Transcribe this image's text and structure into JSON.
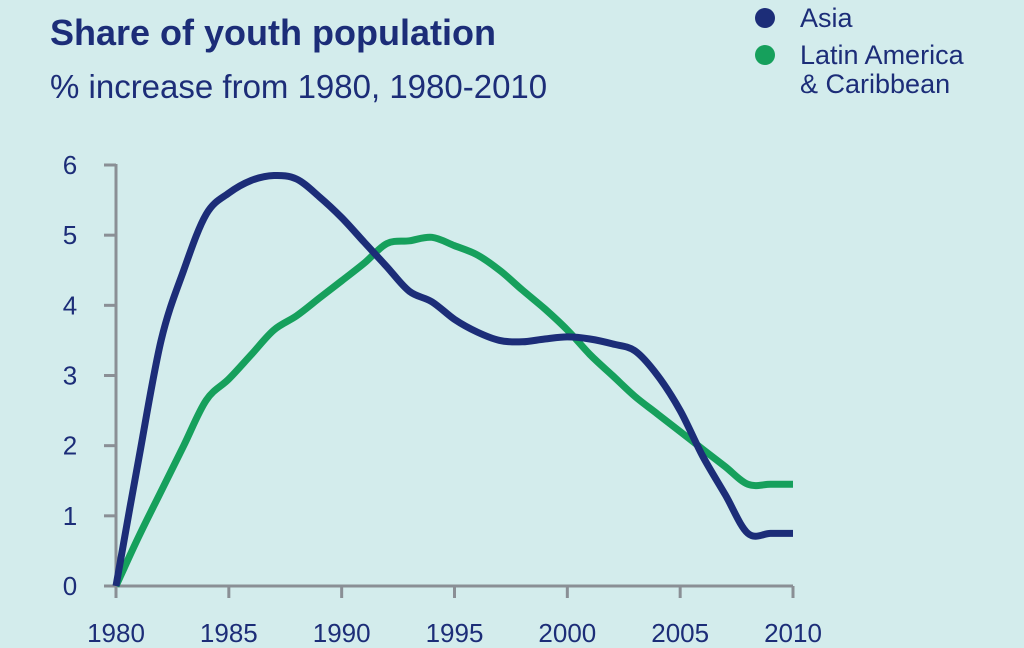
{
  "title": "Share of youth population",
  "subtitle": "% increase from 1980, 1980-2010",
  "colors": {
    "background": "#d3ecec",
    "axis": "#8a8f95",
    "text": "#1c2d78"
  },
  "chart_data": {
    "type": "line",
    "title": "Share of youth population",
    "subtitle": "% increase from 1980, 1980-2010",
    "xlabel": "",
    "ylabel": "",
    "xlim": [
      1980,
      2010
    ],
    "ylim": [
      0,
      6
    ],
    "x_ticks": [
      1980,
      1985,
      1990,
      1995,
      2000,
      2005,
      2010
    ],
    "y_ticks": [
      0,
      1,
      2,
      3,
      4,
      5,
      6
    ],
    "grid": false,
    "legend_position": "top-right",
    "series": [
      {
        "name": "Asia",
        "color": "#1c2d78",
        "x": [
          1980,
          1981,
          1982,
          1983,
          1984,
          1985,
          1986,
          1987,
          1988,
          1989,
          1990,
          1991,
          1992,
          1993,
          1994,
          1995,
          1996,
          1997,
          1998,
          1999,
          2000,
          2001,
          2002,
          2003,
          2004,
          2005,
          2006,
          2007,
          2008,
          2009,
          2010
        ],
        "y": [
          0,
          1.8,
          3.5,
          4.5,
          5.3,
          5.6,
          5.78,
          5.85,
          5.8,
          5.55,
          5.25,
          4.9,
          4.55,
          4.2,
          4.05,
          3.8,
          3.62,
          3.5,
          3.48,
          3.52,
          3.55,
          3.52,
          3.45,
          3.35,
          3.0,
          2.5,
          1.85,
          1.3,
          0.75,
          0.75,
          0.75
        ]
      },
      {
        "name": "Latin America\n& Caribbean",
        "color": "#16a05c",
        "x": [
          1980,
          1981,
          1982,
          1983,
          1984,
          1985,
          1986,
          1987,
          1988,
          1989,
          1990,
          1991,
          1992,
          1993,
          1994,
          1995,
          1996,
          1997,
          1998,
          1999,
          2000,
          2001,
          2002,
          2003,
          2004,
          2005,
          2006,
          2007,
          2008,
          2009,
          2010
        ],
        "y": [
          0,
          0.7,
          1.35,
          2.0,
          2.65,
          2.95,
          3.3,
          3.65,
          3.85,
          4.1,
          4.35,
          4.6,
          4.88,
          4.92,
          4.97,
          4.85,
          4.72,
          4.5,
          4.22,
          3.95,
          3.65,
          3.3,
          3.0,
          2.7,
          2.45,
          2.2,
          1.95,
          1.7,
          1.45,
          1.45,
          1.45
        ]
      }
    ]
  }
}
